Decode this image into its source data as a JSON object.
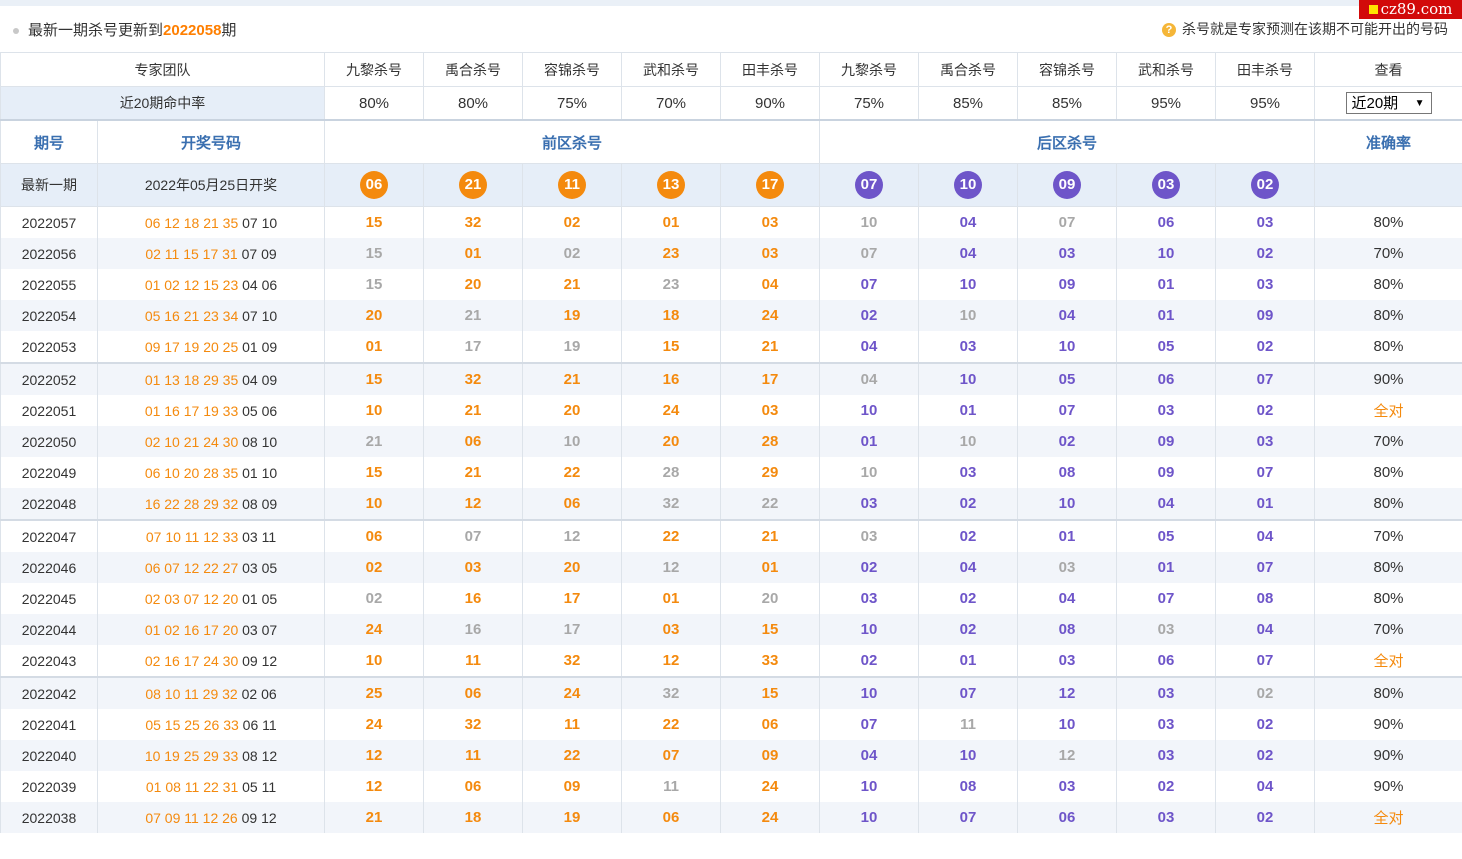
{
  "header": {
    "update_prefix": "最新一期杀号更新到",
    "update_issue": "2022058",
    "update_suffix": "期",
    "tip_icon": "?",
    "tip": "杀号就是专家预测在该期不可能开出的号码",
    "logo": "cz89.com"
  },
  "team_row": {
    "label": "专家团队",
    "experts": [
      "九黎杀号",
      "禹合杀号",
      "容锦杀号",
      "武和杀号",
      "田丰杀号",
      "九黎杀号",
      "禹合杀号",
      "容锦杀号",
      "武和杀号",
      "田丰杀号"
    ],
    "view_label": "查看"
  },
  "rate_row": {
    "label": "近20期命中率",
    "rates": [
      "80%",
      "80%",
      "75%",
      "70%",
      "90%",
      "75%",
      "85%",
      "85%",
      "95%",
      "95%"
    ],
    "select_value": "近20期"
  },
  "table_header": {
    "issue": "期号",
    "draw": "开奖号码",
    "front": "前区杀号",
    "back": "后区杀号",
    "accuracy": "准确率"
  },
  "latest": {
    "label": "最新一期",
    "date": "2022年05月25日开奖",
    "front_kills": [
      "06",
      "21",
      "11",
      "13",
      "17"
    ],
    "back_kills": [
      "07",
      "10",
      "09",
      "03",
      "02"
    ]
  },
  "colors": {
    "front": "#f48a0e",
    "back": "#6e55c9",
    "miss": "#a8a8a8",
    "header_text": "#3a6fb0"
  },
  "rows": [
    {
      "issue": "2022057",
      "front": "06 12 18 21 35",
      "back": "07 10",
      "kills": [
        "15",
        "32",
        "02",
        "01",
        "03",
        "10",
        "04",
        "07",
        "06",
        "03"
      ],
      "miss": [
        5,
        7
      ],
      "accuracy": "80%"
    },
    {
      "issue": "2022056",
      "front": "02 11 15 17 31",
      "back": "07 09",
      "kills": [
        "15",
        "01",
        "02",
        "23",
        "03",
        "07",
        "04",
        "03",
        "10",
        "02"
      ],
      "miss": [
        0,
        2,
        5
      ],
      "accuracy": "70%"
    },
    {
      "issue": "2022055",
      "front": "01 02 12 15 23",
      "back": "04 06",
      "kills": [
        "15",
        "20",
        "21",
        "23",
        "04",
        "07",
        "10",
        "09",
        "01",
        "03"
      ],
      "miss": [
        0,
        3
      ],
      "accuracy": "80%"
    },
    {
      "issue": "2022054",
      "front": "05 16 21 23 34",
      "back": "07 10",
      "kills": [
        "20",
        "21",
        "19",
        "18",
        "24",
        "02",
        "10",
        "04",
        "01",
        "09"
      ],
      "miss": [
        1,
        6
      ],
      "accuracy": "80%"
    },
    {
      "issue": "2022053",
      "front": "09 17 19 20 25",
      "back": "01 09",
      "kills": [
        "01",
        "17",
        "19",
        "15",
        "21",
        "04",
        "03",
        "10",
        "05",
        "02"
      ],
      "miss": [
        1,
        2
      ],
      "accuracy": "80%"
    },
    {
      "issue": "2022052",
      "front": "01 13 18 29 35",
      "back": "04 09",
      "kills": [
        "15",
        "32",
        "21",
        "16",
        "17",
        "04",
        "10",
        "05",
        "06",
        "07"
      ],
      "miss": [
        5
      ],
      "accuracy": "90%"
    },
    {
      "issue": "2022051",
      "front": "01 16 17 19 33",
      "back": "05 06",
      "kills": [
        "10",
        "21",
        "20",
        "24",
        "03",
        "10",
        "01",
        "07",
        "03",
        "02"
      ],
      "miss": [],
      "accuracy": "全对"
    },
    {
      "issue": "2022050",
      "front": "02 10 21 24 30",
      "back": "08 10",
      "kills": [
        "21",
        "06",
        "10",
        "20",
        "28",
        "01",
        "10",
        "02",
        "09",
        "03"
      ],
      "miss": [
        0,
        2,
        6
      ],
      "accuracy": "70%"
    },
    {
      "issue": "2022049",
      "front": "06 10 20 28 35",
      "back": "01 10",
      "kills": [
        "15",
        "21",
        "22",
        "28",
        "29",
        "10",
        "03",
        "08",
        "09",
        "07"
      ],
      "miss": [
        3,
        5
      ],
      "accuracy": "80%"
    },
    {
      "issue": "2022048",
      "front": "16 22 28 29 32",
      "back": "08 09",
      "kills": [
        "10",
        "12",
        "06",
        "32",
        "22",
        "03",
        "02",
        "10",
        "04",
        "01"
      ],
      "miss": [
        3,
        4
      ],
      "accuracy": "80%"
    },
    {
      "issue": "2022047",
      "front": "07 10 11 12 33",
      "back": "03 11",
      "kills": [
        "06",
        "07",
        "12",
        "22",
        "21",
        "03",
        "02",
        "01",
        "05",
        "04"
      ],
      "miss": [
        1,
        2,
        5
      ],
      "accuracy": "70%"
    },
    {
      "issue": "2022046",
      "front": "06 07 12 22 27",
      "back": "03 05",
      "kills": [
        "02",
        "03",
        "20",
        "12",
        "01",
        "02",
        "04",
        "03",
        "01",
        "07"
      ],
      "miss": [
        3,
        7
      ],
      "accuracy": "80%"
    },
    {
      "issue": "2022045",
      "front": "02 03 07 12 20",
      "back": "01 05",
      "kills": [
        "02",
        "16",
        "17",
        "01",
        "20",
        "03",
        "02",
        "04",
        "07",
        "08"
      ],
      "miss": [
        0,
        4
      ],
      "accuracy": "80%"
    },
    {
      "issue": "2022044",
      "front": "01 02 16 17 20",
      "back": "03 07",
      "kills": [
        "24",
        "16",
        "17",
        "03",
        "15",
        "10",
        "02",
        "08",
        "03",
        "04"
      ],
      "miss": [
        1,
        2,
        8
      ],
      "accuracy": "70%"
    },
    {
      "issue": "2022043",
      "front": "02 16 17 24 30",
      "back": "09 12",
      "kills": [
        "10",
        "11",
        "32",
        "12",
        "33",
        "02",
        "01",
        "03",
        "06",
        "07"
      ],
      "miss": [],
      "accuracy": "全对"
    },
    {
      "issue": "2022042",
      "front": "08 10 11 29 32",
      "back": "02 06",
      "kills": [
        "25",
        "06",
        "24",
        "32",
        "15",
        "10",
        "07",
        "12",
        "03",
        "02"
      ],
      "miss": [
        3,
        9
      ],
      "accuracy": "80%"
    },
    {
      "issue": "2022041",
      "front": "05 15 25 26 33",
      "back": "06 11",
      "kills": [
        "24",
        "32",
        "11",
        "22",
        "06",
        "07",
        "11",
        "10",
        "03",
        "02"
      ],
      "miss": [
        6
      ],
      "accuracy": "90%"
    },
    {
      "issue": "2022040",
      "front": "10 19 25 29 33",
      "back": "08 12",
      "kills": [
        "12",
        "11",
        "22",
        "07",
        "09",
        "04",
        "10",
        "12",
        "03",
        "02"
      ],
      "miss": [
        7
      ],
      "accuracy": "90%"
    },
    {
      "issue": "2022039",
      "front": "01 08 11 22 31",
      "back": "05 11",
      "kills": [
        "12",
        "06",
        "09",
        "11",
        "24",
        "10",
        "08",
        "03",
        "02",
        "04"
      ],
      "miss": [
        3
      ],
      "accuracy": "90%"
    },
    {
      "issue": "2022038",
      "front": "07 09 11 12 26",
      "back": "09 12",
      "kills": [
        "21",
        "18",
        "19",
        "06",
        "24",
        "10",
        "07",
        "06",
        "03",
        "02"
      ],
      "miss": [],
      "accuracy": "全对"
    }
  ]
}
